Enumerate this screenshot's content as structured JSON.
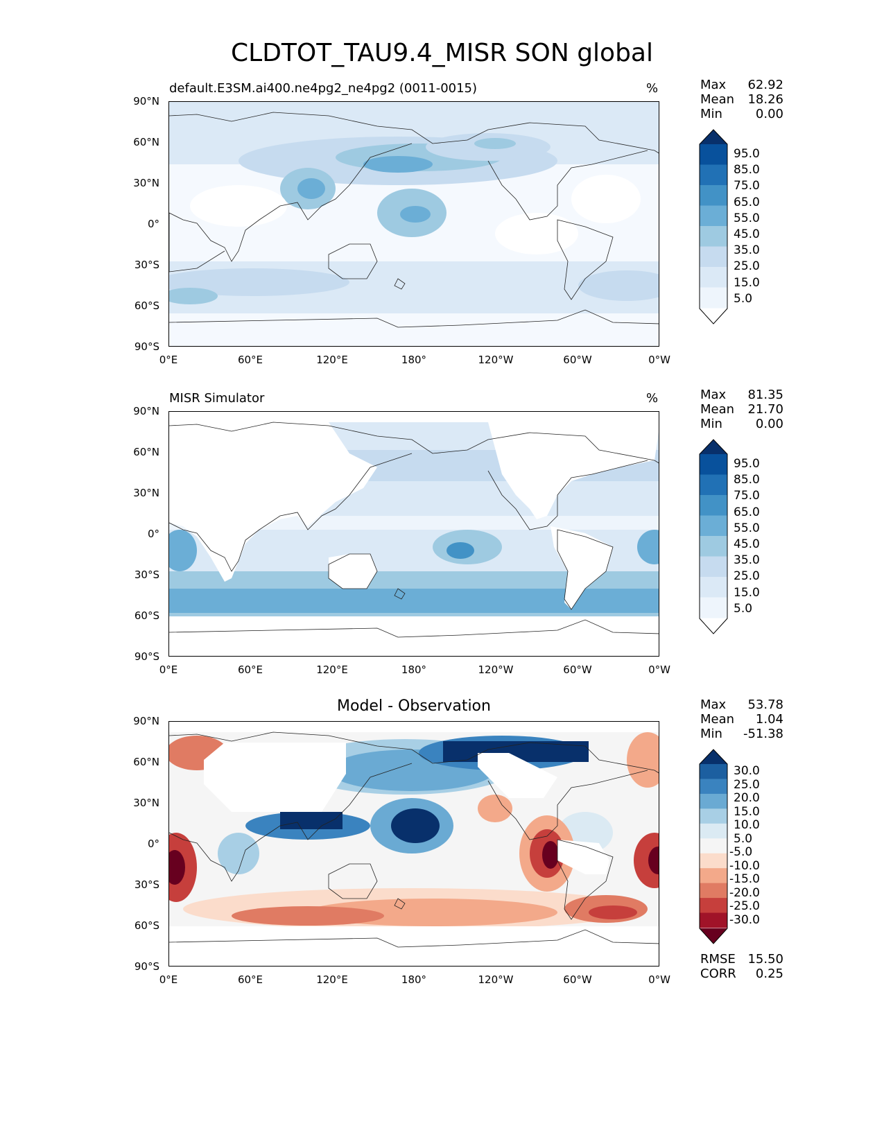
{
  "figure": {
    "title": "CLDTOT_TAU9.4_MISR SON global"
  },
  "axes": {
    "lat_ticks": [
      "90°N",
      "60°N",
      "30°N",
      "0°",
      "30°S",
      "60°S",
      "90°S"
    ],
    "lon_ticks": [
      "0°E",
      "60°E",
      "120°E",
      "180°",
      "120°W",
      "60°W",
      "0°W"
    ]
  },
  "panels": [
    {
      "title_left": "default.E3SM.ai400.ne4pg2_ne4pg2 (0011-0015)",
      "title_center": "",
      "unit": "%",
      "stats": [
        {
          "label": "Max",
          "value": "62.92"
        },
        {
          "label": "Mean",
          "value": "18.26"
        },
        {
          "label": "Min",
          "value": "0.00"
        }
      ],
      "colorbar": {
        "labels": [
          "95.0",
          "85.0",
          "75.0",
          "65.0",
          "55.0",
          "45.0",
          "35.0",
          "25.0",
          "15.0",
          "5.0"
        ],
        "colors": [
          "#08306b",
          "#08519c",
          "#2171b5",
          "#4292c6",
          "#6baed6",
          "#9ecae1",
          "#c6dbef",
          "#dbe9f6",
          "#eef5fc",
          "#ffffff"
        ]
      }
    },
    {
      "title_left": "MISR Simulator",
      "title_center": "",
      "unit": "%",
      "stats": [
        {
          "label": "Max",
          "value": "81.35"
        },
        {
          "label": "Mean",
          "value": "21.70"
        },
        {
          "label": "Min",
          "value": "0.00"
        }
      ],
      "colorbar": {
        "labels": [
          "95.0",
          "85.0",
          "75.0",
          "65.0",
          "55.0",
          "45.0",
          "35.0",
          "25.0",
          "15.0",
          "5.0"
        ],
        "colors": [
          "#08306b",
          "#08519c",
          "#2171b5",
          "#4292c6",
          "#6baed6",
          "#9ecae1",
          "#c6dbef",
          "#dbe9f6",
          "#eef5fc",
          "#ffffff"
        ]
      }
    },
    {
      "title_left": "",
      "title_center": "Model - Observation",
      "unit": "",
      "stats": [
        {
          "label": "Max",
          "value": "53.78"
        },
        {
          "label": "Mean",
          "value": "1.04"
        },
        {
          "label": "Min",
          "value": "-51.38"
        }
      ],
      "colorbar": {
        "labels": [
          "30.0",
          "25.0",
          "20.0",
          "15.0",
          "10.0",
          "5.0",
          "-5.0",
          "-10.0",
          "-15.0",
          "-20.0",
          "-25.0",
          "-30.0"
        ],
        "colors": [
          "#08306b",
          "#1c5fa0",
          "#3a83bf",
          "#6aaad3",
          "#a8cfe5",
          "#dbeaf3",
          "#f5f5f5",
          "#fbdccb",
          "#f3a98a",
          "#e07b63",
          "#c63f3c",
          "#a01328",
          "#67001f"
        ]
      },
      "metrics": [
        {
          "label": "RMSE",
          "value": "15.50"
        },
        {
          "label": "CORR",
          "value": "0.25"
        }
      ]
    }
  ]
}
